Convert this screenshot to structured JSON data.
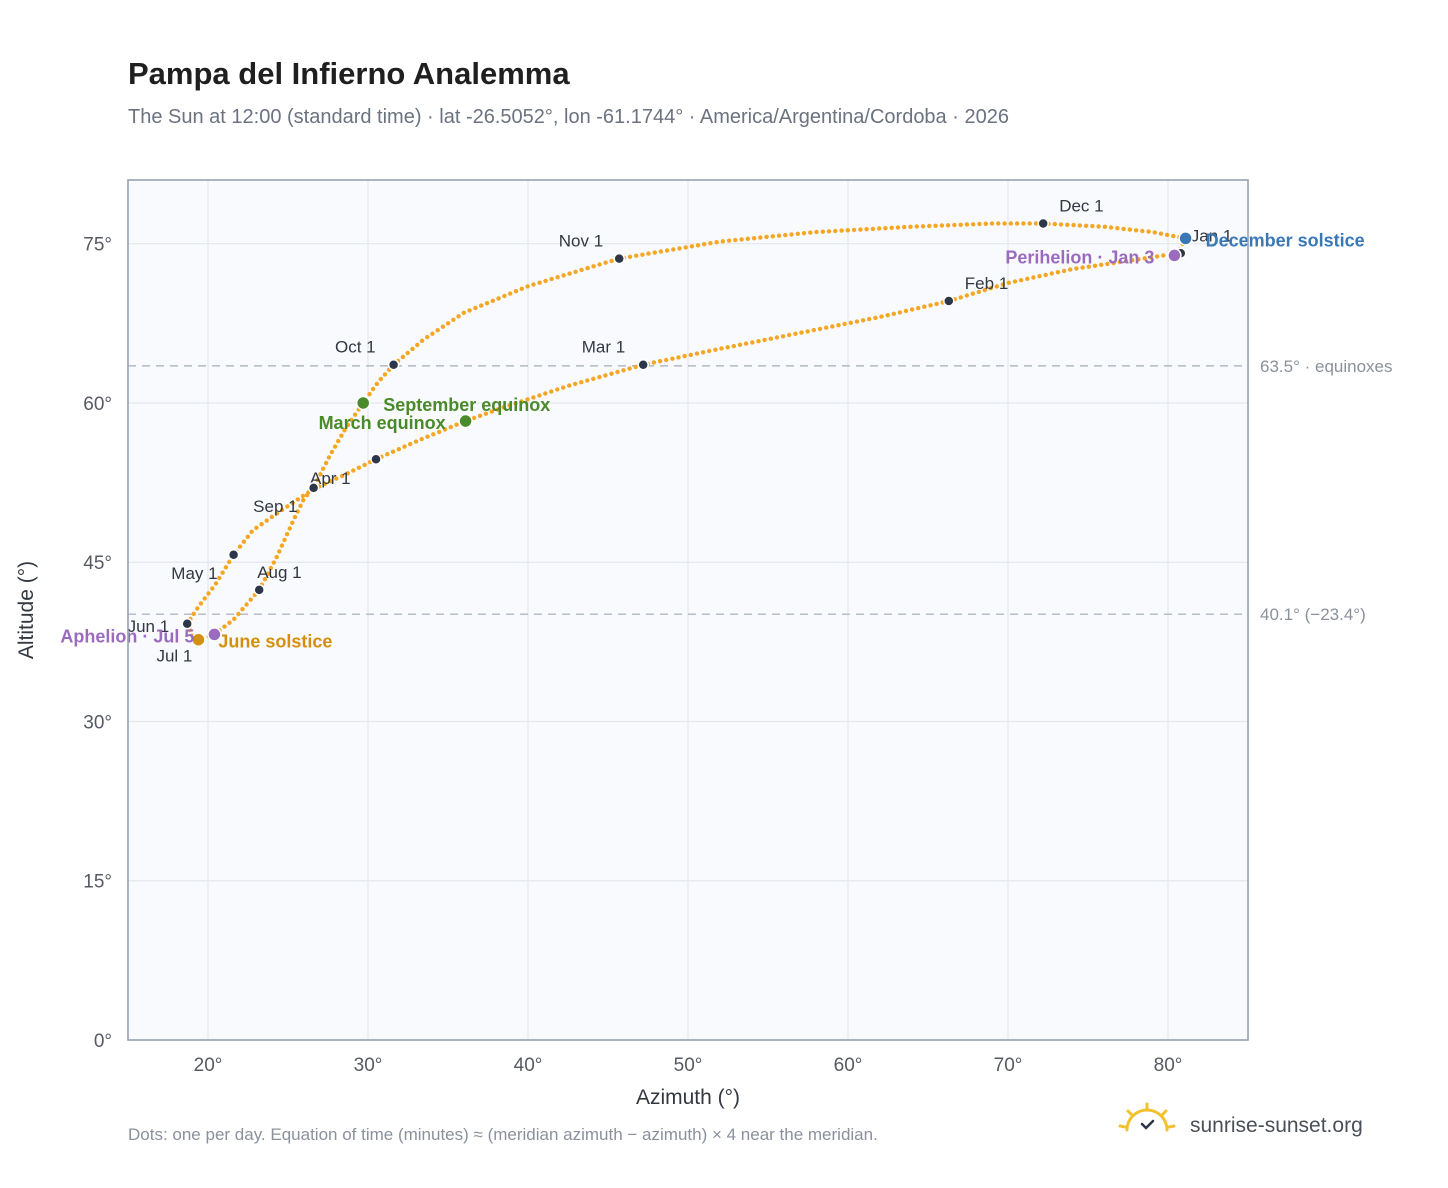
{
  "title": "Pampa del Infierno Analemma",
  "subtitle": "The Sun at 12:00 (standard time) · lat -26.5052°, lon -61.1744° · America/Argentina/Cordoba · 2026",
  "footer_note": "Dots: one per day. Equation of time (minutes) ≈ (meridian azimuth − azimuth) × 4 near the meridian.",
  "brand": "sunrise-sunset.org",
  "colors": {
    "path": "#f5a623",
    "month_marker": "#2d3748",
    "equinox": "#4a8a2a",
    "june_solstice": "#d4900a",
    "december_solstice": "#3a78b5",
    "apsis": "#9b6bbf",
    "plot_background": "#f8fafd",
    "grid": "#e3e7ec",
    "reference_line": "#b8bec7"
  },
  "chart_data": {
    "type": "scatter",
    "title": "Pampa del Infierno Analemma",
    "xlabel": "Azimuth (°)",
    "ylabel": "Altitude (°)",
    "xlim": [
      15,
      85
    ],
    "ylim": [
      0,
      81
    ],
    "grid": true,
    "x_ticks": [
      20,
      30,
      40,
      50,
      60,
      70,
      80
    ],
    "x_tick_labels": [
      "20°",
      "30°",
      "40°",
      "50°",
      "60°",
      "70°",
      "80°"
    ],
    "y_ticks": [
      0,
      15,
      30,
      45,
      60,
      75
    ],
    "y_tick_labels": [
      "0°",
      "15°",
      "30°",
      "45°",
      "60°",
      "75°"
    ],
    "reference_lines": [
      {
        "y": 63.5,
        "label": "63.5° · equinoxes"
      },
      {
        "y": 40.1,
        "label": "40.1° (−23.4°)"
      }
    ],
    "path_points": [
      [
        81.1,
        75.5
      ],
      [
        80.6,
        74.1
      ],
      [
        78.0,
        73.5
      ],
      [
        74.0,
        72.6
      ],
      [
        70.0,
        71.3
      ],
      [
        66.3,
        69.6
      ],
      [
        62.0,
        68.1
      ],
      [
        57.0,
        66.6
      ],
      [
        52.0,
        65.1
      ],
      [
        47.2,
        63.6
      ],
      [
        42.5,
        61.6
      ],
      [
        38.5,
        59.6
      ],
      [
        36.1,
        58.3
      ],
      [
        33.2,
        56.5
      ],
      [
        30.5,
        54.7
      ],
      [
        28.5,
        53.2
      ],
      [
        26.6,
        51.9
      ],
      [
        24.6,
        49.9
      ],
      [
        22.8,
        48.0
      ],
      [
        21.6,
        45.7
      ],
      [
        20.5,
        43.0
      ],
      [
        19.4,
        40.8
      ],
      [
        18.7,
        39.2
      ],
      [
        19.1,
        37.8
      ],
      [
        19.4,
        37.7
      ],
      [
        20.4,
        38.2
      ],
      [
        21.6,
        39.6
      ],
      [
        23.2,
        42.4
      ],
      [
        24.3,
        45.5
      ],
      [
        25.2,
        48.5
      ],
      [
        26.0,
        51.0
      ],
      [
        26.6,
        52.0
      ],
      [
        27.6,
        55.0
      ],
      [
        28.6,
        57.6
      ],
      [
        29.7,
        60.0
      ],
      [
        30.6,
        61.9
      ],
      [
        31.6,
        63.6
      ],
      [
        33.5,
        66.0
      ],
      [
        36.0,
        68.5
      ],
      [
        40.0,
        71.0
      ],
      [
        45.7,
        73.6
      ],
      [
        52.0,
        75.2
      ],
      [
        58.0,
        76.1
      ],
      [
        64.0,
        76.6
      ],
      [
        69.0,
        76.9
      ],
      [
        72.2,
        76.9
      ],
      [
        76.0,
        76.6
      ],
      [
        79.0,
        76.1
      ],
      [
        81.1,
        75.5
      ]
    ],
    "month_markers": [
      {
        "label": "Jan 1",
        "x": 80.8,
        "y": 74.1
      },
      {
        "label": "Feb 1",
        "x": 66.3,
        "y": 69.6
      },
      {
        "label": "Mar 1",
        "x": 47.2,
        "y": 63.6
      },
      {
        "label": "Apr 1",
        "x": 30.5,
        "y": 54.7
      },
      {
        "label": "May 1",
        "x": 21.6,
        "y": 45.7
      },
      {
        "label": "Jun 1",
        "x": 18.7,
        "y": 39.2
      },
      {
        "label": "Jul 1",
        "x": 19.4,
        "y": 37.7
      },
      {
        "label": "Aug 1",
        "x": 23.2,
        "y": 42.4
      },
      {
        "label": "Sep 1",
        "x": 26.6,
        "y": 52.0
      },
      {
        "label": "Oct 1",
        "x": 31.6,
        "y": 63.6
      },
      {
        "label": "Nov 1",
        "x": 45.7,
        "y": 73.6
      },
      {
        "label": "Dec 1",
        "x": 72.2,
        "y": 76.9
      }
    ],
    "events": [
      {
        "label": "March equinox",
        "x": 36.1,
        "y": 58.3,
        "kind": "equinox"
      },
      {
        "label": "September equinox",
        "x": 29.7,
        "y": 60.0,
        "kind": "equinox"
      },
      {
        "label": "June solstice",
        "x": 19.4,
        "y": 37.7,
        "kind": "june_solstice"
      },
      {
        "label": "December solstice",
        "x": 81.1,
        "y": 75.5,
        "kind": "december_solstice"
      },
      {
        "label": "Perihelion · Jan 3",
        "x": 80.4,
        "y": 73.9,
        "kind": "apsis"
      },
      {
        "label": "Aphelion · Jul 5",
        "x": 20.4,
        "y": 38.2,
        "kind": "apsis"
      }
    ]
  }
}
